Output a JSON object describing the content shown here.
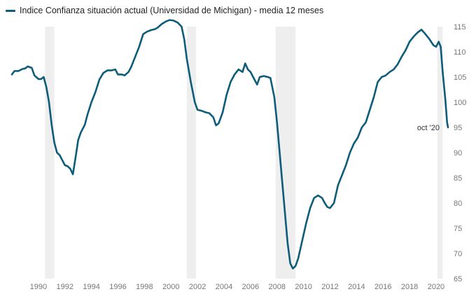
{
  "chart_data": {
    "type": "line",
    "title": "",
    "xlabel": "",
    "ylabel": "",
    "xlim": [
      1988.0,
      2020.9
    ],
    "ylim": [
      65,
      115
    ],
    "yticks": [
      65,
      70,
      75,
      80,
      85,
      90,
      95,
      100,
      105,
      110,
      115
    ],
    "xticks": [
      1990,
      1992,
      1994,
      1996,
      1998,
      2000,
      2002,
      2004,
      2006,
      2008,
      2010,
      2012,
      2014,
      2016,
      2018,
      2020
    ],
    "xtick_labels": [
      "1990",
      "1992",
      "1994",
      "1996",
      "1998",
      "2000",
      "2002",
      "2004",
      "2006",
      "2008",
      "2010",
      "2012",
      "2014",
      "2016",
      "2018",
      "2020"
    ],
    "grid": false,
    "legend_position": "top-left",
    "recession_periods": [
      [
        1990.5,
        1991.2
      ],
      [
        2001.2,
        2001.9
      ],
      [
        2007.9,
        2009.4
      ],
      [
        2020.1,
        2020.5
      ]
    ],
    "series": [
      {
        "name": "Indice Confianza situación actual (Universidad de Michigan) - media 12 meses",
        "color": "#0d5c7a",
        "points": [
          [
            1988.0,
            105.5
          ],
          [
            1988.2,
            106.2
          ],
          [
            1988.5,
            106.2
          ],
          [
            1988.8,
            106.6
          ],
          [
            1989.0,
            106.7
          ],
          [
            1989.2,
            107.1
          ],
          [
            1989.5,
            106.8
          ],
          [
            1989.7,
            105.3
          ],
          [
            1990.0,
            104.6
          ],
          [
            1990.2,
            104.6
          ],
          [
            1990.4,
            105.0
          ],
          [
            1990.6,
            103.0
          ],
          [
            1990.8,
            100.0
          ],
          [
            1991.0,
            95.5
          ],
          [
            1991.2,
            92.0
          ],
          [
            1991.4,
            90.0
          ],
          [
            1991.6,
            89.5
          ],
          [
            1991.8,
            88.5
          ],
          [
            1992.0,
            87.5
          ],
          [
            1992.2,
            87.3
          ],
          [
            1992.4,
            86.8
          ],
          [
            1992.6,
            85.7
          ],
          [
            1992.8,
            89.0
          ],
          [
            1993.0,
            92.5
          ],
          [
            1993.2,
            94.0
          ],
          [
            1993.5,
            95.5
          ],
          [
            1993.7,
            97.5
          ],
          [
            1994.0,
            100.0
          ],
          [
            1994.3,
            102.0
          ],
          [
            1994.6,
            104.5
          ],
          [
            1994.9,
            105.8
          ],
          [
            1995.2,
            106.3
          ],
          [
            1995.5,
            106.3
          ],
          [
            1995.8,
            106.5
          ],
          [
            1996.0,
            105.5
          ],
          [
            1996.3,
            105.5
          ],
          [
            1996.5,
            105.3
          ],
          [
            1996.8,
            106.0
          ],
          [
            1997.0,
            107.0
          ],
          [
            1997.3,
            109.0
          ],
          [
            1997.6,
            111.0
          ],
          [
            1997.9,
            113.5
          ],
          [
            1998.2,
            114.0
          ],
          [
            1998.5,
            114.3
          ],
          [
            1998.8,
            114.5
          ],
          [
            1999.0,
            114.8
          ],
          [
            1999.3,
            115.5
          ],
          [
            1999.6,
            116.0
          ],
          [
            1999.9,
            116.3
          ],
          [
            2000.2,
            116.2
          ],
          [
            2000.5,
            115.8
          ],
          [
            2000.8,
            115.0
          ],
          [
            2001.0,
            112.5
          ],
          [
            2001.2,
            108.5
          ],
          [
            2001.5,
            104.0
          ],
          [
            2001.8,
            100.0
          ],
          [
            2002.0,
            98.5
          ],
          [
            2002.3,
            98.3
          ],
          [
            2002.6,
            98.0
          ],
          [
            2002.9,
            97.8
          ],
          [
            2003.2,
            97.0
          ],
          [
            2003.4,
            95.4
          ],
          [
            2003.6,
            95.8
          ],
          [
            2003.9,
            98.0
          ],
          [
            2004.2,
            101.5
          ],
          [
            2004.5,
            104.0
          ],
          [
            2004.8,
            105.5
          ],
          [
            2005.1,
            106.5
          ],
          [
            2005.4,
            106.0
          ],
          [
            2005.6,
            107.7
          ],
          [
            2005.8,
            106.5
          ],
          [
            2006.0,
            106.0
          ],
          [
            2006.2,
            105.0
          ],
          [
            2006.5,
            103.5
          ],
          [
            2006.7,
            105.0
          ],
          [
            2007.0,
            105.2
          ],
          [
            2007.3,
            105.0
          ],
          [
            2007.5,
            104.8
          ],
          [
            2007.8,
            101.0
          ],
          [
            2008.0,
            96.0
          ],
          [
            2008.2,
            90.0
          ],
          [
            2008.4,
            84.0
          ],
          [
            2008.6,
            78.0
          ],
          [
            2008.8,
            72.0
          ],
          [
            2009.0,
            68.0
          ],
          [
            2009.2,
            67.0
          ],
          [
            2009.4,
            67.5
          ],
          [
            2009.6,
            69.0
          ],
          [
            2009.9,
            72.5
          ],
          [
            2010.2,
            76.0
          ],
          [
            2010.5,
            79.0
          ],
          [
            2010.8,
            81.0
          ],
          [
            2011.1,
            81.5
          ],
          [
            2011.4,
            81.0
          ],
          [
            2011.6,
            80.0
          ],
          [
            2011.8,
            79.2
          ],
          [
            2012.0,
            79.0
          ],
          [
            2012.3,
            80.0
          ],
          [
            2012.6,
            83.5
          ],
          [
            2012.9,
            85.5
          ],
          [
            2013.2,
            87.5
          ],
          [
            2013.5,
            90.0
          ],
          [
            2013.8,
            91.8
          ],
          [
            2014.1,
            93.0
          ],
          [
            2014.4,
            95.0
          ],
          [
            2014.7,
            96.0
          ],
          [
            2015.0,
            98.5
          ],
          [
            2015.3,
            101.0
          ],
          [
            2015.6,
            104.0
          ],
          [
            2015.9,
            105.0
          ],
          [
            2016.2,
            105.3
          ],
          [
            2016.5,
            106.0
          ],
          [
            2016.8,
            106.5
          ],
          [
            2017.1,
            107.5
          ],
          [
            2017.4,
            109.0
          ],
          [
            2017.7,
            110.3
          ],
          [
            2018.0,
            112.0
          ],
          [
            2018.3,
            113.0
          ],
          [
            2018.6,
            113.8
          ],
          [
            2018.9,
            114.4
          ],
          [
            2019.2,
            113.5
          ],
          [
            2019.5,
            112.5
          ],
          [
            2019.8,
            111.3
          ],
          [
            2020.0,
            111.0
          ],
          [
            2020.2,
            112.0
          ],
          [
            2020.35,
            111.0
          ],
          [
            2020.5,
            106.0
          ],
          [
            2020.7,
            100.5
          ],
          [
            2020.83,
            96.0
          ],
          [
            2020.9,
            95.0
          ]
        ]
      }
    ],
    "annotations": [
      {
        "text": "oct '20",
        "x": 2020.9,
        "y": 95.0
      }
    ]
  }
}
